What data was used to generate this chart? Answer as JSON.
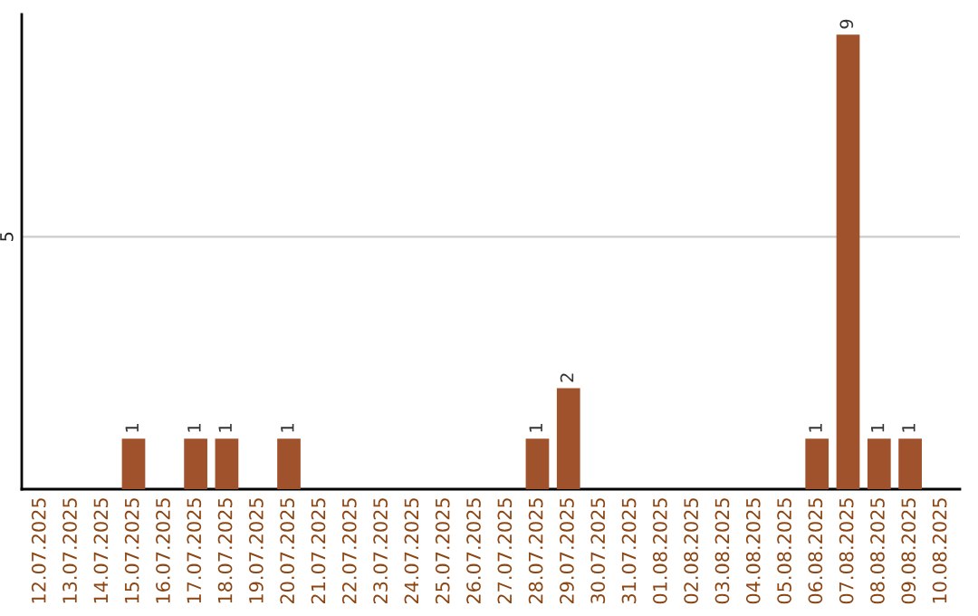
{
  "chart_data": {
    "type": "bar",
    "categories": [
      "12.07.2025",
      "13.07.2025",
      "14.07.2025",
      "15.07.2025",
      "16.07.2025",
      "17.07.2025",
      "18.07.2025",
      "19.07.2025",
      "20.07.2025",
      "21.07.2025",
      "22.07.2025",
      "23.07.2025",
      "24.07.2025",
      "25.07.2025",
      "26.07.2025",
      "27.07.2025",
      "28.07.2025",
      "29.07.2025",
      "30.07.2025",
      "31.07.2025",
      "01.08.2025",
      "02.08.2025",
      "03.08.2025",
      "04.08.2025",
      "05.08.2025",
      "06.08.2025",
      "07.08.2025",
      "08.08.2025",
      "09.08.2025",
      "10.08.2025"
    ],
    "values": [
      0,
      0,
      0,
      1,
      0,
      1,
      1,
      0,
      1,
      0,
      0,
      0,
      0,
      0,
      0,
      0,
      1,
      2,
      0,
      0,
      0,
      0,
      0,
      0,
      0,
      1,
      9,
      1,
      1,
      0
    ],
    "value_labels": [
      null,
      null,
      null,
      "1",
      null,
      "1",
      "1",
      null,
      "1",
      null,
      null,
      null,
      null,
      null,
      null,
      null,
      "1",
      "2",
      null,
      null,
      null,
      null,
      null,
      null,
      null,
      "1",
      "9",
      "1",
      "1",
      null
    ],
    "color": "#a0522d",
    "ylim": [
      0,
      9.4
    ],
    "yticks": [
      5
    ],
    "grid": "y"
  }
}
